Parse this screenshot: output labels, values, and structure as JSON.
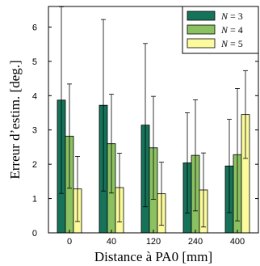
{
  "chart_data": {
    "type": "bar",
    "xlabel": "Distance à PA0 [mm]",
    "ylabel": "Erreur d’estim. [deg.]",
    "categories": [
      "0",
      "40",
      "120",
      "240",
      "400"
    ],
    "ylim": [
      0,
      6.6
    ],
    "yticks": [
      0,
      1,
      2,
      3,
      4,
      5,
      6
    ],
    "grid": false,
    "legend_position": "top-right",
    "series": [
      {
        "name": "N = 3",
        "legend_parts": {
          "var": "N",
          "rest": " = 3"
        },
        "color": "#16735a",
        "values": [
          3.87,
          3.72,
          3.14,
          2.04,
          1.95
        ],
        "errors": [
          2.72,
          2.5,
          2.38,
          1.46,
          1.36
        ]
      },
      {
        "name": "N = 4",
        "legend_parts": {
          "var": "N",
          "rest": " = 4"
        },
        "color": "#8cc162",
        "values": [
          2.82,
          2.6,
          2.48,
          2.26,
          2.28
        ],
        "errors": [
          1.52,
          1.44,
          1.5,
          1.62,
          1.93
        ]
      },
      {
        "name": "N = 5",
        "legend_parts": {
          "var": "N",
          "rest": " = 5"
        },
        "color": "#fbfb9e",
        "values": [
          1.28,
          1.32,
          1.14,
          1.25,
          3.45
        ],
        "errors": [
          0.95,
          1.0,
          0.92,
          1.08,
          1.28
        ]
      }
    ]
  }
}
